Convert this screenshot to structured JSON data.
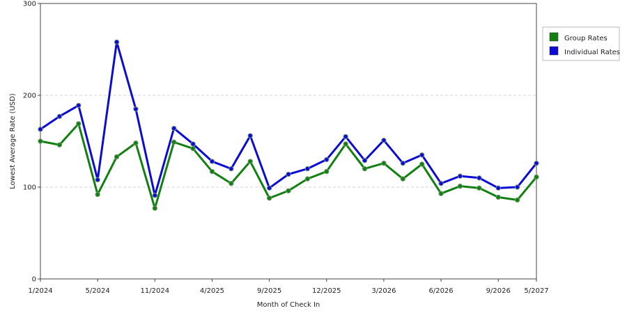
{
  "chart_data": {
    "type": "line",
    "xlabel": "Month of Check In",
    "ylabel": "Lowest Average Rate (USD)",
    "ylim": [
      0,
      300
    ],
    "yticks": [
      0,
      100,
      200,
      300
    ],
    "grid": "horizontal dashed",
    "legend_position": "right",
    "x_ticks": [
      {
        "index": 0,
        "label": "1/2024"
      },
      {
        "index": 3,
        "label": "5/2024"
      },
      {
        "index": 6,
        "label": "11/2024"
      },
      {
        "index": 9,
        "label": "4/2025"
      },
      {
        "index": 12,
        "label": "9/2025"
      },
      {
        "index": 15,
        "label": "12/2025"
      },
      {
        "index": 18,
        "label": "3/2026"
      },
      {
        "index": 21,
        "label": "6/2026"
      },
      {
        "index": 24,
        "label": "9/2026"
      },
      {
        "index": 26,
        "label": "5/2027"
      }
    ],
    "series": [
      {
        "name": "Group Rates",
        "color": "#118011",
        "values": [
          150,
          146,
          169,
          92,
          133,
          148,
          77,
          149,
          142,
          117,
          104,
          128,
          88,
          96,
          109,
          117,
          147,
          120,
          126,
          109,
          125,
          93,
          101,
          99,
          89,
          86,
          111
        ]
      },
      {
        "name": "Individual Rates",
        "color": "#0b0bd4",
        "values": [
          163,
          177,
          189,
          108,
          258,
          185,
          91,
          164,
          147,
          128,
          120,
          156,
          99,
          114,
          120,
          130,
          155,
          129,
          151,
          126,
          135,
          104,
          112,
          110,
          99,
          100,
          126
        ]
      }
    ]
  }
}
